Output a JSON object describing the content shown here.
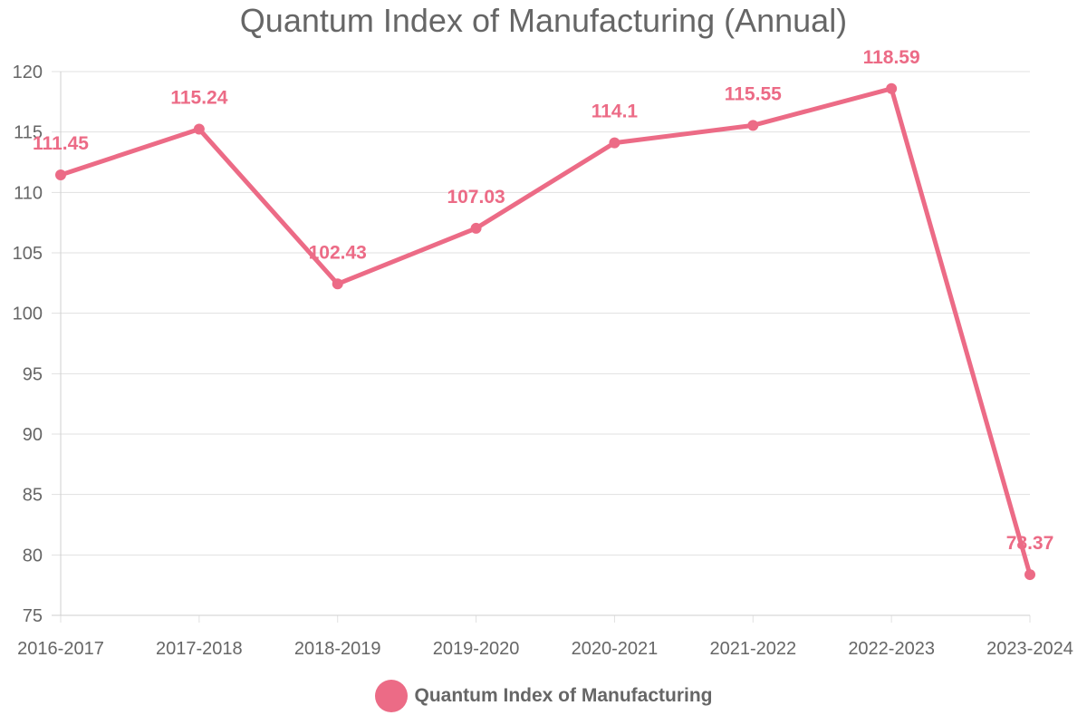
{
  "chart_data": {
    "type": "line",
    "title": "Quantum Index of Manufacturing (Annual)",
    "xlabel": "",
    "ylabel": "",
    "categories": [
      "2016-2017",
      "2017-2018",
      "2018-2019",
      "2019-2020",
      "2020-2021",
      "2021-2022",
      "2022-2023",
      "2023-2024"
    ],
    "series": [
      {
        "name": "Quantum Index of Manufacturing",
        "values": [
          111.45,
          115.24,
          102.43,
          107.03,
          114.1,
          115.55,
          118.59,
          78.37
        ],
        "labels": [
          "111.45",
          "115.24",
          "102.43",
          "107.03",
          "114.1",
          "115.55",
          "118.59",
          "78.37"
        ],
        "color": "#ec6b86"
      }
    ],
    "ylim": [
      75,
      120
    ],
    "yticks": [
      "75",
      "80",
      "85",
      "90",
      "95",
      "100",
      "105",
      "110",
      "115",
      "120"
    ],
    "grid": true,
    "legend_position": "bottom",
    "axis_text_color": "#666666",
    "grid_color": "#e1e1e1"
  }
}
